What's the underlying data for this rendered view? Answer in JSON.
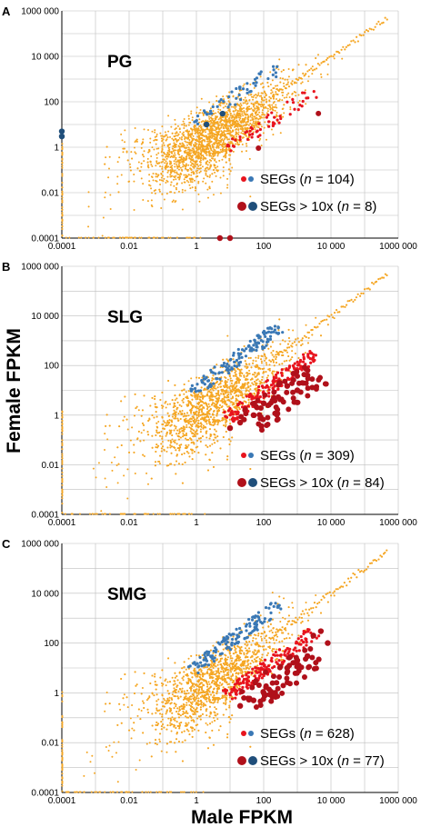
{
  "figure": {
    "ylabel": "Female FPKM",
    "xlabel": "Male FPKM"
  },
  "colors": {
    "background_genes": "#F5A623",
    "seg_red": "#E8141E",
    "seg_blue": "#3A78B5",
    "seg10_red": "#B0101A",
    "seg10_blue": "#1F4E7A",
    "grid": "#BDBDBD",
    "diagonal_orange": "#F5A623"
  },
  "chart_data": [
    {
      "panel": "A",
      "type": "scatter",
      "title": "PG",
      "scale": "log10",
      "xlim": [
        0.0001,
        1000000
      ],
      "ylim": [
        0.0001,
        1000000
      ],
      "x_ticks": [
        "0.0001",
        "0.01",
        "1",
        "100",
        "10 000",
        "1000 000"
      ],
      "y_ticks": [
        "0.0001",
        "0.01",
        "1",
        "100",
        "10 000",
        "1000 000"
      ],
      "legend": [
        {
          "text_pre": "SEGs (",
          "n_label": "n",
          "text_post": " = 104)"
        },
        {
          "text_pre": "SEGs > 10x (",
          "n_label": "n",
          "text_post": " = 8)"
        }
      ],
      "segs_n": 104,
      "segs10_n": 8,
      "seg10_points": [
        {
          "x": 10,
          "y": 0.0001
        },
        {
          "x": 5,
          "y": 0.0001
        },
        {
          "x": 0.0001,
          "y": 3
        },
        {
          "x": 0.0001,
          "y": 5
        },
        {
          "x": 6,
          "y": 30
        },
        {
          "x": 2,
          "y": 10
        }
      ]
    },
    {
      "panel": "B",
      "type": "scatter",
      "title": "SLG",
      "scale": "log10",
      "xlim": [
        0.0001,
        1000000
      ],
      "ylim": [
        0.0001,
        1000000
      ],
      "x_ticks": [
        "0.0001",
        "0.01",
        "1",
        "100",
        "10 000",
        "1000 000"
      ],
      "y_ticks": [
        "0.0001",
        "0.01",
        "1",
        "100",
        "10 000",
        "1000 000"
      ],
      "legend": [
        {
          "text_pre": "SEGs (",
          "n_label": "n",
          "text_post": " = 309)"
        },
        {
          "text_pre": "SEGs > 10x (",
          "n_label": "n",
          "text_post": " = 84)"
        }
      ],
      "segs_n": 309,
      "segs10_n": 84,
      "seg10_points": [
        {
          "x": 2000,
          "y": 40
        },
        {
          "x": 500,
          "y": 15
        },
        {
          "x": 300,
          "y": 20
        },
        {
          "x": 1000,
          "y": 10
        },
        {
          "x": 200,
          "y": 5
        },
        {
          "x": 100,
          "y": 3
        },
        {
          "x": 50,
          "y": 1
        },
        {
          "x": 20,
          "y": 0.5
        },
        {
          "x": 10,
          "y": 0.3
        }
      ]
    },
    {
      "panel": "C",
      "type": "scatter",
      "title": "SMG",
      "scale": "log10",
      "xlim": [
        0.0001,
        1000000
      ],
      "ylim": [
        0.0001,
        1000000
      ],
      "x_ticks": [
        "0.0001",
        "0.01",
        "1",
        "100",
        "10 000",
        "1000 000"
      ],
      "y_ticks": [
        "0.0001",
        "0.01",
        "1",
        "100",
        "10 000",
        "1000 000"
      ],
      "legend": [
        {
          "text_pre": "SEGs (",
          "n_label": "n",
          "text_post": " = 628)"
        },
        {
          "text_pre": "SEGs > 10x (",
          "n_label": "n",
          "text_post": " = 77)"
        }
      ],
      "segs_n": 628,
      "segs10_n": 77,
      "seg10_points": [
        {
          "x": 5000,
          "y": 300
        },
        {
          "x": 3000,
          "y": 200
        },
        {
          "x": 8000,
          "y": 100
        },
        {
          "x": 2000,
          "y": 30
        },
        {
          "x": 1000,
          "y": 20
        },
        {
          "x": 500,
          "y": 10
        },
        {
          "x": 100,
          "y": 1
        },
        {
          "x": 50,
          "y": 0.5
        },
        {
          "x": 20,
          "y": 0.3
        }
      ]
    }
  ]
}
